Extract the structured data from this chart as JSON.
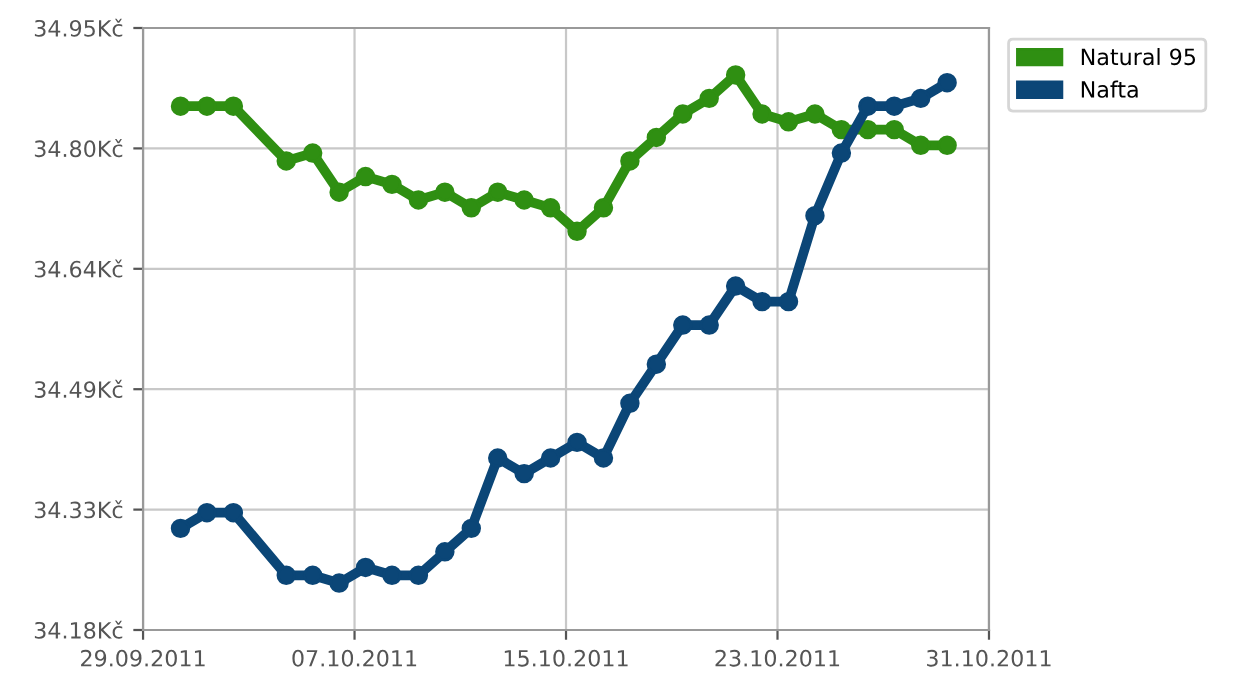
{
  "chart_data": {
    "type": "line",
    "x": [
      "2011-09-30T10:00",
      "2011-10-01T10:00",
      "2011-10-02T10:00",
      "2011-10-04T10:00",
      "2011-10-05T10:00",
      "2011-10-06T10:00",
      "2011-10-07T10:00",
      "2011-10-08T10:00",
      "2011-10-09T10:00",
      "2011-10-10T10:00",
      "2011-10-11T10:00",
      "2011-10-12T10:00",
      "2011-10-13T10:00",
      "2011-10-14T10:00",
      "2011-10-15T10:00",
      "2011-10-16T10:00",
      "2011-10-17T10:00",
      "2011-10-18T10:00",
      "2011-10-19T10:00",
      "2011-10-20T10:00",
      "2011-10-21T10:00",
      "2011-10-22T10:00",
      "2011-10-23T10:00",
      "2011-10-24T10:00",
      "2011-10-25T10:00",
      "2011-10-26T10:00",
      "2011-10-27T10:00",
      "2011-10-28T10:00",
      "2011-10-29T10:00"
    ],
    "series": [
      {
        "name": "Natural 95",
        "color": "#2f8f12",
        "values": [
          34.85,
          34.85,
          34.85,
          34.78,
          34.79,
          34.74,
          34.76,
          34.75,
          34.73,
          34.74,
          34.72,
          34.74,
          34.73,
          34.72,
          34.69,
          34.72,
          34.78,
          34.81,
          34.84,
          34.86,
          34.89,
          34.84,
          34.83,
          34.84,
          34.82,
          34.82,
          34.82,
          34.8,
          34.8
        ]
      },
      {
        "name": "Nafta",
        "color": "#0b4677",
        "values": [
          34.31,
          34.33,
          34.33,
          34.25,
          34.25,
          34.24,
          34.26,
          34.25,
          34.25,
          34.28,
          34.31,
          34.4,
          34.38,
          34.4,
          34.42,
          34.4,
          34.47,
          34.52,
          34.57,
          34.57,
          34.62,
          34.6,
          34.6,
          34.71,
          34.79,
          34.85,
          34.85,
          34.86,
          34.88
        ]
      }
    ],
    "xlim": [
      "2011-09-29",
      "2011-10-31"
    ],
    "xticks": [
      {
        "value": "2011-09-29",
        "label": "29.09.2011"
      },
      {
        "value": "2011-10-07",
        "label": "07.10.2011"
      },
      {
        "value": "2011-10-15",
        "label": "15.10.2011"
      },
      {
        "value": "2011-10-23",
        "label": "23.10.2011"
      },
      {
        "value": "2011-10-31",
        "label": "31.10.2011"
      }
    ],
    "ylim": [
      34.18,
      34.95
    ],
    "yticks": [
      {
        "value": 34.18,
        "label": "34.18Kč"
      },
      {
        "value": 34.334,
        "label": "34.33Kč"
      },
      {
        "value": 34.488,
        "label": "34.49Kč"
      },
      {
        "value": 34.642,
        "label": "34.64Kč"
      },
      {
        "value": 34.796,
        "label": "34.80Kč"
      },
      {
        "value": 34.95,
        "label": "34.95Kč"
      }
    ],
    "grid": true,
    "legend": "right",
    "marker": "circle",
    "line_style": "solid"
  }
}
